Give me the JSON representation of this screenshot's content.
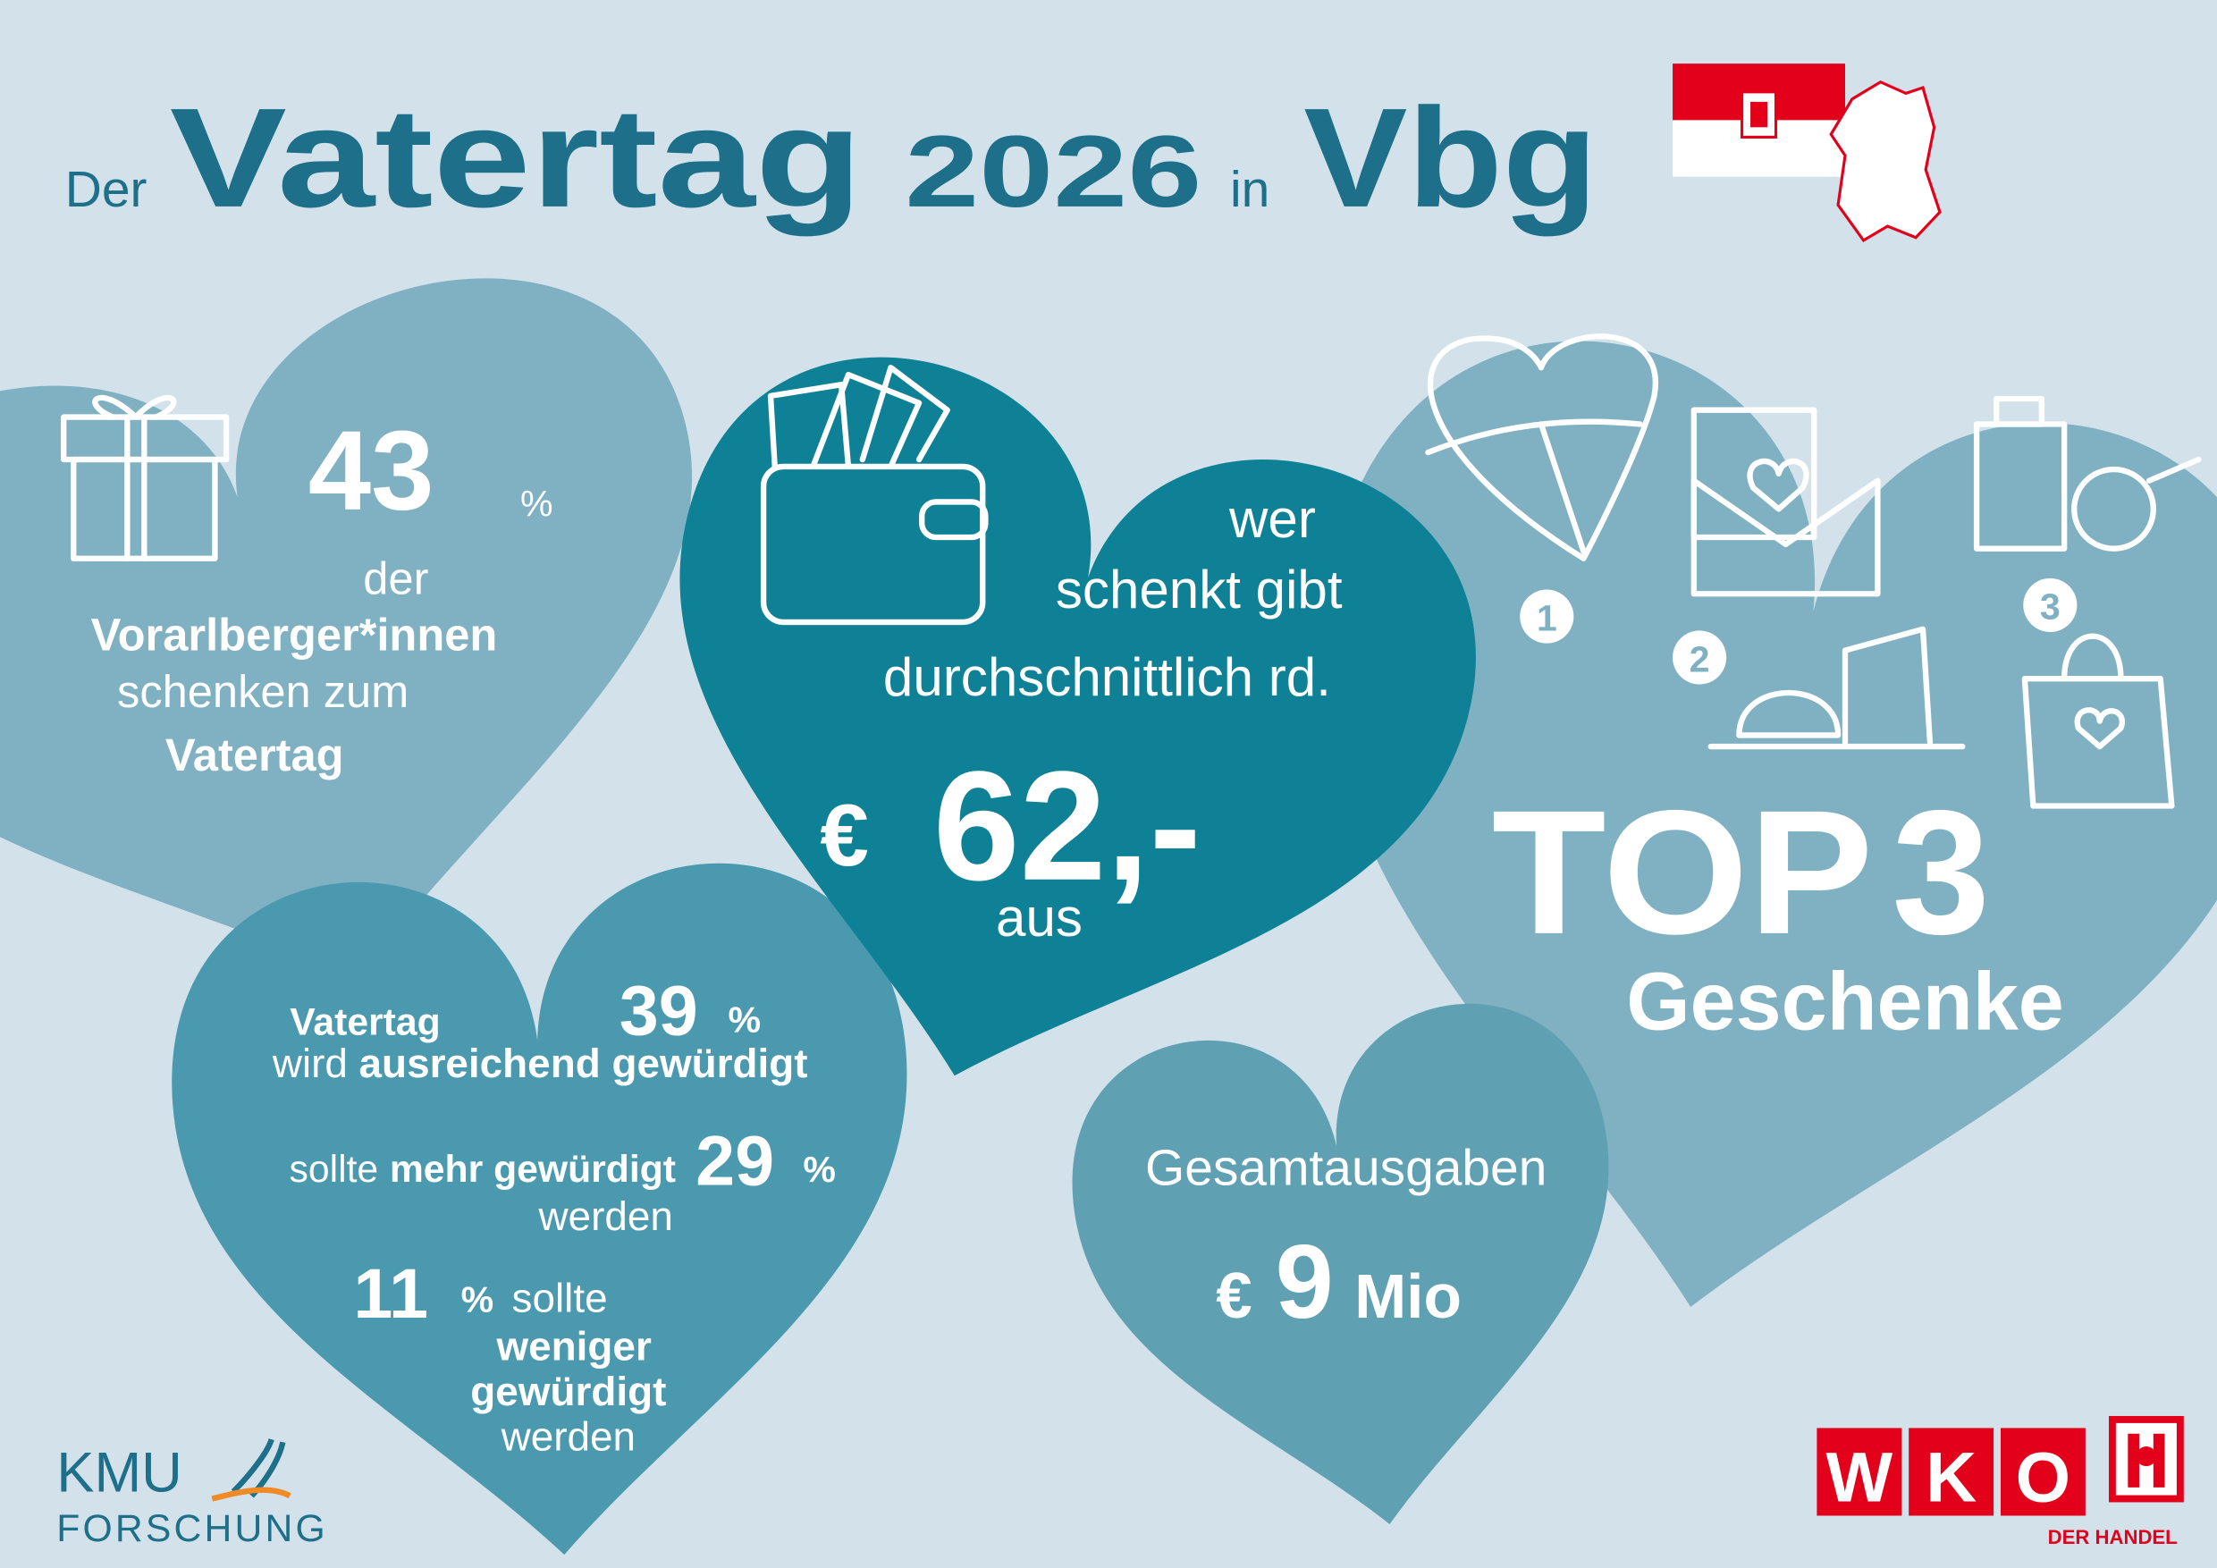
{
  "title": {
    "der": "Der",
    "vatertag": "Vatertag",
    "year": "2026",
    "in": "in",
    "vbg": "Vbg"
  },
  "share": {
    "value": "43",
    "unit": "%",
    "line1": "der",
    "line2": "Vorarlberger*innen",
    "line3": "schenken zum",
    "line4": "Vatertag"
  },
  "spending": {
    "line1": "wer",
    "line2": "schenkt gibt",
    "line3": "durchschnittlich rd.",
    "currency": "€",
    "amount": "62,-",
    "line4": "aus"
  },
  "top": {
    "ranks": [
      "1",
      "2",
      "3"
    ],
    "top": "TOP",
    "three": "3",
    "label": "Geschenke"
  },
  "appreciation": {
    "vatertag": "Vatertag",
    "v39": "39",
    "p39": "%",
    "wird": "wird",
    "enough": "ausreichend gewürdigt",
    "sollte1": "sollte",
    "more": "mehr gewürdigt",
    "v29": "29",
    "p29": "%",
    "werden1": "werden",
    "v11": "11",
    "p11": "%",
    "sollte2": "sollte",
    "less": "weniger",
    "gewuerdigt": "gewürdigt",
    "werden2": "werden"
  },
  "total": {
    "label": "Gesamtausgaben",
    "currency": "€",
    "amount": "9",
    "unit": "Mio"
  },
  "logos": {
    "kmu": "KMU",
    "forschung": "FORSCHUNG",
    "wko": [
      "W",
      "K",
      "O"
    ],
    "handel": "DER HANDEL"
  }
}
